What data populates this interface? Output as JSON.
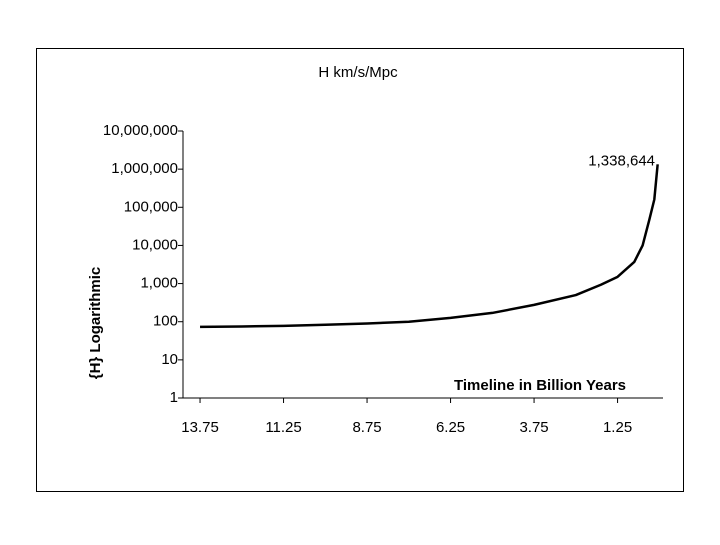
{
  "chart_data": {
    "type": "line",
    "title": "H km/s/Mpc",
    "x_label": "Timeline in Billion Years",
    "y_label": "{H} Logarithmic",
    "x": [
      13.75,
      12.5,
      11.25,
      10,
      8.75,
      7.5,
      6.25,
      5,
      3.75,
      2.5,
      1.75,
      1.25,
      0.75,
      0.5,
      0.3,
      0.15,
      0.05
    ],
    "values": [
      73,
      75,
      78,
      83,
      90,
      100,
      126,
      170,
      276,
      500,
      930,
      1500,
      3700,
      10000,
      47000,
      160000,
      1338644
    ],
    "value_labels": [
      null,
      null,
      null,
      null,
      null,
      null,
      null,
      null,
      null,
      null,
      null,
      null,
      null,
      null,
      null,
      null,
      "1,338,644"
    ],
    "color": "#000000",
    "xlim": [
      14.26,
      -0.11
    ],
    "xticks": [
      13.75,
      11.25,
      8.75,
      6.25,
      3.75,
      1.25
    ],
    "ylim": [
      1,
      10000000
    ],
    "y_scale": "log",
    "yticks": [
      1,
      10,
      100,
      {
        "value": 1000,
        "label": "1,000"
      },
      {
        "value": 10000,
        "label": "10,000"
      },
      {
        "value": 100000,
        "label": "100,000"
      },
      {
        "value": 1000000,
        "label": "1,000,000"
      },
      {
        "value": 10000000,
        "label": "10,000,000"
      }
    ],
    "grid": false
  }
}
